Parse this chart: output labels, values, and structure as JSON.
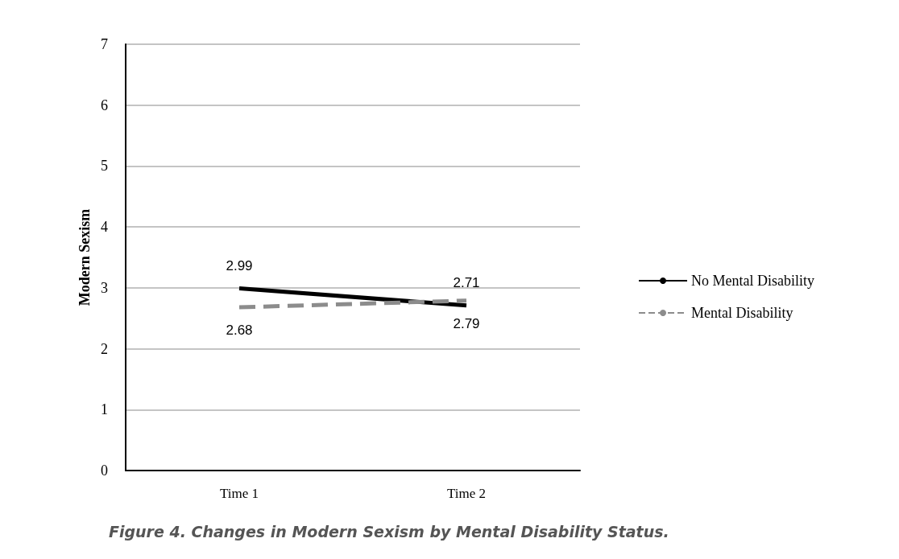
{
  "chart_data": {
    "type": "line",
    "title": "Figure 4. Changes in Modern Sexism by Mental Disability Status.",
    "ylabel": "Modern Sexism",
    "categories": [
      "Time 1",
      "Time 2"
    ],
    "series": [
      {
        "name": "No Mental Disability",
        "color": "#000000",
        "values": [
          2.99,
          2.71
        ],
        "line_style": "solid"
      },
      {
        "name": "Mental Disability",
        "color": "#8c8c8c",
        "values": [
          2.68,
          2.79
        ],
        "line_style": "dashed"
      }
    ],
    "ylim": [
      0,
      7
    ],
    "yticks": [
      0,
      1,
      2,
      3,
      4,
      5,
      6,
      7
    ],
    "grid": "y",
    "legend": "right",
    "marker": "none",
    "data_labels": true
  }
}
